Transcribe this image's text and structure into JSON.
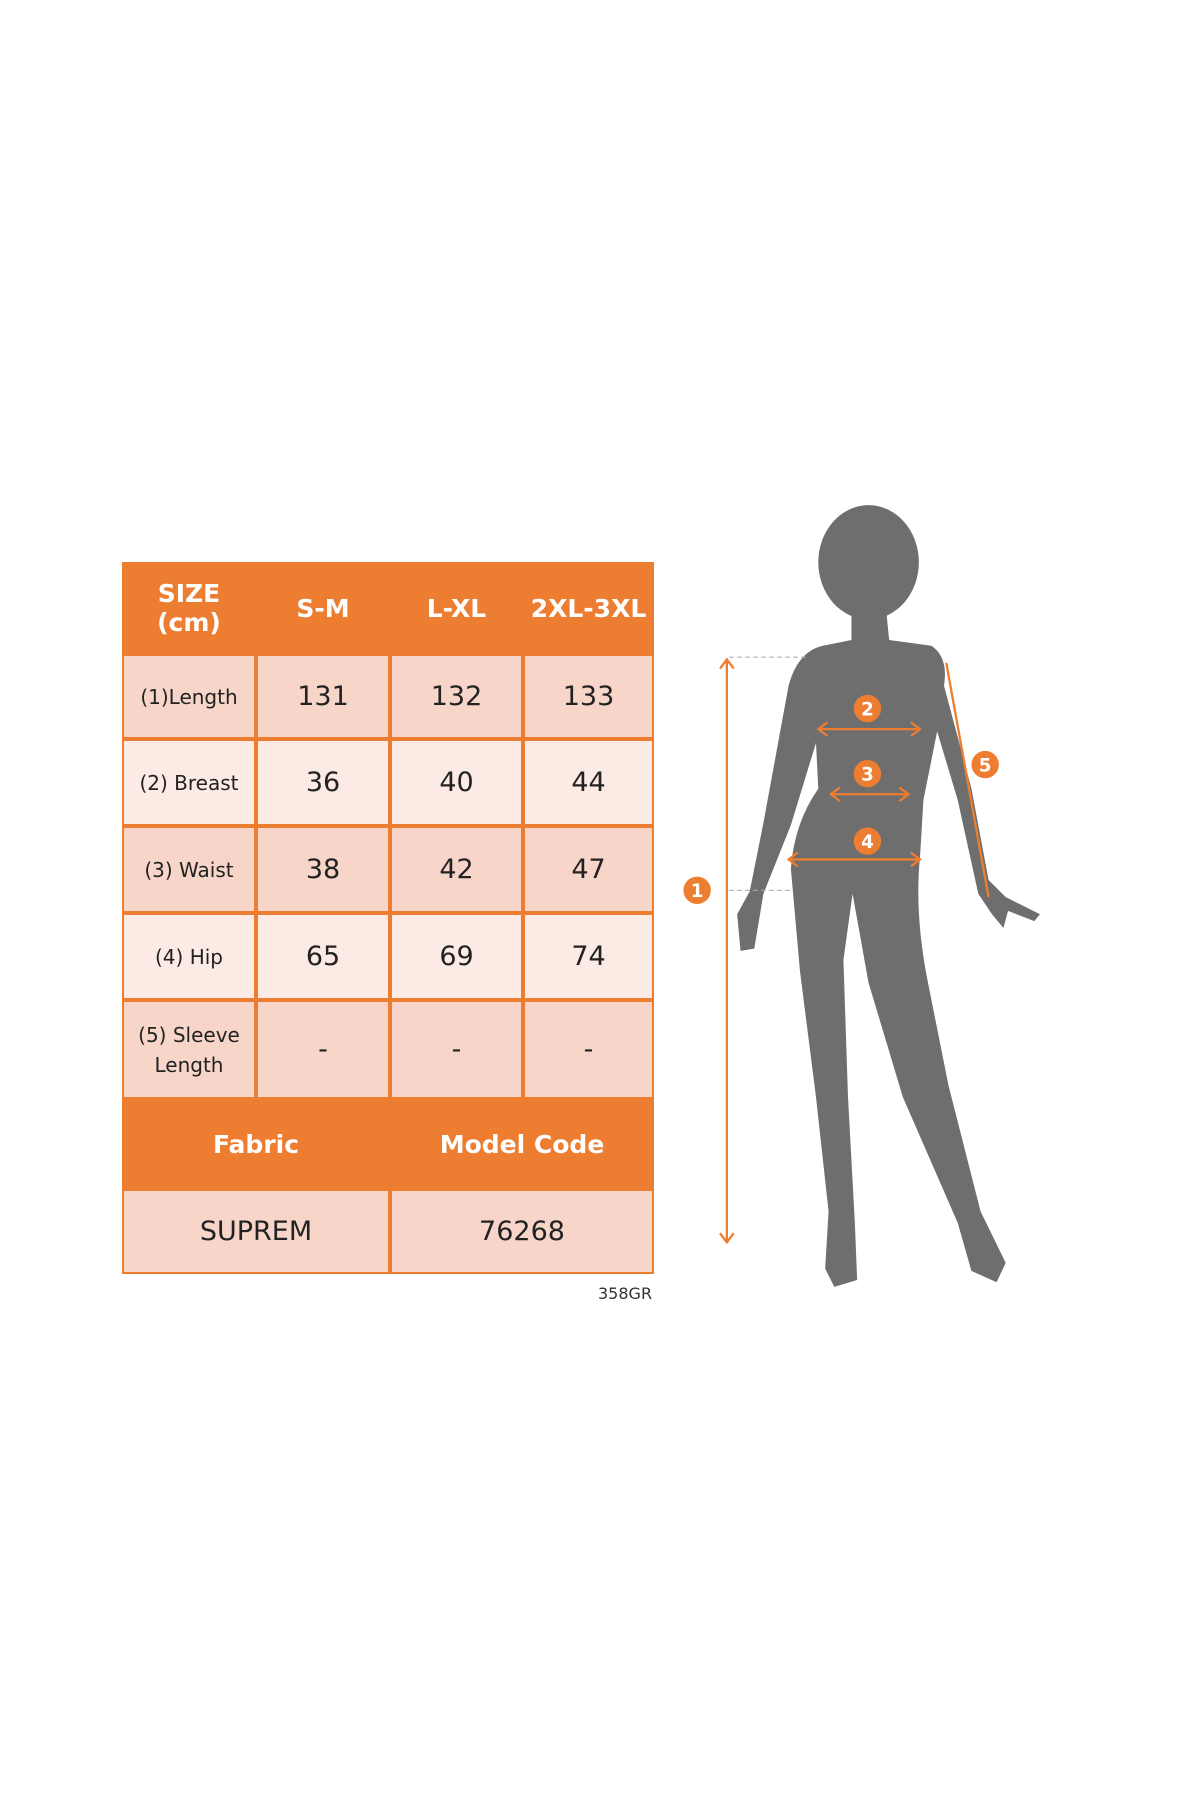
{
  "table": {
    "header": [
      "SIZE\n(cm)",
      "S-M",
      "L-XL",
      "2XL-3XL"
    ],
    "rows": [
      {
        "label": "(1)Length",
        "values": [
          "131",
          "132",
          "133"
        ]
      },
      {
        "label": "(2) Breast",
        "values": [
          "36",
          "40",
          "44"
        ]
      },
      {
        "label": "(3) Waist",
        "values": [
          "38",
          "42",
          "47"
        ]
      },
      {
        "label": "(4) Hip",
        "values": [
          "65",
          "69",
          "74"
        ]
      },
      {
        "label": "(5) Sleeve\nLength",
        "values": [
          "-",
          "-",
          "-"
        ]
      }
    ],
    "footer_header": [
      "Fabric",
      "Model Code"
    ],
    "footer_values": [
      "SUPREM",
      "76268"
    ]
  },
  "code_note": "358GR",
  "figure": {
    "markers": [
      "1",
      "2",
      "3",
      "4",
      "5"
    ]
  },
  "colors": {
    "accent": "#ED7D31",
    "silhouette": "#6E6E6E",
    "cell_dark": "#F8D5C9",
    "cell_light": "#FCEAE4"
  }
}
